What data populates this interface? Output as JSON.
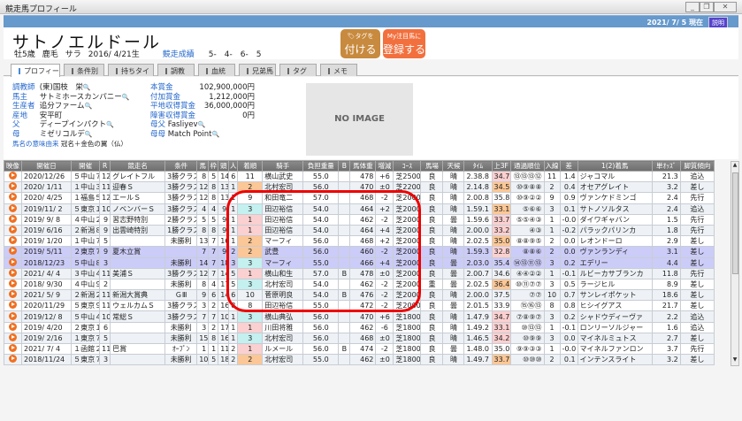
{
  "window": {
    "title": "競走馬プロフィール",
    "minimize": "_",
    "restore": "❐",
    "close": "✕"
  },
  "topbar": {
    "date": "2021/ 7/ 5 現在",
    "help_label": "説明"
  },
  "horse": {
    "name": "サトノエルドール",
    "sex_age": "牡5歳",
    "coat": "鹿毛",
    "breed": "サラ",
    "birth": "2016/ 4/21生",
    "record_label": "競走成績",
    "record": "5-　4-　6-　5"
  },
  "buttons": {
    "tag_top": "タグを",
    "tag_main": "付ける",
    "fav_top": "My注目馬に",
    "fav_main": "登録する"
  },
  "tabs": [
    "プロフィール",
    "条件別",
    "持ちタイム",
    "調教",
    "血統",
    "兄弟馬",
    "タグ",
    "メモ"
  ],
  "profile": {
    "left": [
      {
        "label": "調教師",
        "value": "(東)国枝　栄"
      },
      {
        "label": "馬主",
        "value": "サトミホースカンパニー"
      },
      {
        "label": "生産者",
        "value": "追分ファーム"
      },
      {
        "label": "産地",
        "value": "安平町"
      },
      {
        "label": "父",
        "value": "ディープインパクト"
      },
      {
        "label": "母",
        "value": "ミゼリコルデ"
      }
    ],
    "name_origin_label": "馬名の意味由来",
    "name_origin": "冠名＋金色の翼（仏）",
    "right": [
      {
        "label": "本賞金",
        "value": "102,900,000円"
      },
      {
        "label": "付加賞金",
        "value": "1,212,000円"
      },
      {
        "label": "平地収得賞金",
        "value": "36,000,000円"
      },
      {
        "label": "障害収得賞金",
        "value": "0円"
      }
    ],
    "dam_sire_label": "母父",
    "dam_sire": "Fasliyev",
    "dam_dam_label": "母母",
    "dam_dam": "Match Point",
    "no_image": "NO IMAGE"
  },
  "table": {
    "columns": [
      "映像",
      "開催日",
      "開催",
      "R",
      "競走名",
      "条件",
      "馬",
      "枠",
      "頭",
      "人",
      "着順",
      "騎手",
      "負担重量",
      "B",
      "馬体重",
      "増減",
      "ｺｰｽ",
      "馬場",
      "天候",
      "ﾀｲﾑ",
      "上3F",
      "通過順位",
      "入線",
      "差",
      "1(2)着馬",
      "単ｵｯｽﾞ",
      "脚質傾向"
    ],
    "rows": [
      [
        "",
        "2020/12/26",
        "５中山７",
        "12",
        "グレイトフル",
        "3勝クラス",
        "8",
        "5",
        "14",
        "6",
        "11",
        "横山武史",
        "55.0",
        "",
        "478",
        "+6",
        "芝2500",
        "良",
        "晴",
        "2.38.8",
        "34.7",
        "⑬⑬⑬⑫",
        "11",
        "1.4",
        "ジャコマル",
        "21.3",
        "追込"
      ],
      [
        "",
        "2020/ 1/11",
        "１中山３",
        "11",
        "迎春Ｓ",
        "3勝クラス",
        "12",
        "8",
        "13",
        "1",
        "2",
        "北村宏司",
        "56.0",
        "",
        "470",
        "±0",
        "芝2200",
        "良",
        "晴",
        "2.14.8",
        "34.5",
        "⑩⑨⑧⑧",
        "2",
        "0.4",
        "オセアグレイト",
        "3.2",
        "差し"
      ],
      [
        "",
        "2020/ 4/25",
        "１福島５",
        "12",
        "エールＳ",
        "3勝クラス",
        "12",
        "8",
        "13",
        "1",
        "9",
        "和田竜二",
        "57.0",
        "",
        "468",
        "-2",
        "芝2000",
        "良",
        "晴",
        "2.00.8",
        "35.8",
        "⑩⑨②②",
        "9",
        "0.9",
        "ヴァンケドミンゴ",
        "2.4",
        "先行"
      ],
      [
        "",
        "2019/11/ 2",
        "５東京１",
        "10",
        "ノベンバーＳ",
        "3勝クラス",
        "4",
        "4",
        "9",
        "1",
        "3",
        "田辺裕信",
        "54.0",
        "",
        "464",
        "+2",
        "芝2000",
        "良",
        "晴",
        "1.59.1",
        "33.1",
        "⑤⑥⑥",
        "3",
        "0.1",
        "サトノソルタス",
        "2.4",
        "追込"
      ],
      [
        "",
        "2019/ 9/ 8",
        "４中山２",
        "9",
        "習志野特別",
        "2勝クラス",
        "5",
        "5",
        "9",
        "1",
        "1",
        "田辺裕信",
        "54.0",
        "",
        "462",
        "-2",
        "芝2000",
        "良",
        "曇",
        "1.59.6",
        "33.7",
        "⑤⑤④③",
        "1",
        "-0.0",
        "ダイワギャバン",
        "1.5",
        "先行"
      ],
      [
        "",
        "2019/ 6/16",
        "２新潟８",
        "9",
        "出雲崎特別",
        "1勝クラス",
        "8",
        "8",
        "9",
        "1",
        "1",
        "田辺裕信",
        "54.0",
        "",
        "464",
        "+4",
        "芝2000",
        "良",
        "晴",
        "2.00.0",
        "33.2",
        "④③",
        "1",
        "-0.2",
        "パラックパリンカ",
        "1.8",
        "先行"
      ],
      [
        "",
        "2019/ 1/20",
        "１中山７",
        "5",
        "",
        "未勝利",
        "13",
        "7",
        "16",
        "1",
        "2",
        "マーフィ",
        "56.0",
        "",
        "468",
        "+2",
        "芝2000",
        "良",
        "晴",
        "2.02.5",
        "35.0",
        "⑧⑧⑨⑤",
        "2",
        "0.0",
        "レオンドーロ",
        "2.9",
        "差し"
      ],
      [
        "",
        "2019/ 5/11",
        "２東京７",
        "9",
        "夏木立賞",
        "",
        "7",
        "7",
        "9",
        "2",
        "2",
        "武豊",
        "56.0",
        "",
        "460",
        "-2",
        "芝2000",
        "良",
        "晴",
        "1.59.3",
        "32.8",
        "⑧⑧⑥",
        "2",
        "0.0",
        "ヴァンランディ",
        "3.1",
        "差し"
      ],
      [
        "",
        "2018/12/23",
        "５中山８",
        "3",
        "",
        "未勝利",
        "14",
        "7",
        "18",
        "3",
        "3",
        "マーフィ",
        "55.0",
        "",
        "466",
        "+4",
        "芝2000",
        "良",
        "曇",
        "2.03.0",
        "35.4",
        "⑭⑬⑪⑬",
        "3",
        "0.2",
        "エデリー",
        "4.4",
        "差し"
      ],
      [
        "",
        "2021/ 4/ 4",
        "３中山４",
        "11",
        "美浦Ｓ",
        "3勝クラス",
        "12",
        "7",
        "14",
        "5",
        "1",
        "横山和生",
        "57.0",
        "B",
        "478",
        "±0",
        "芝2000",
        "良",
        "曇",
        "2.00.7",
        "34.6",
        "④④②②",
        "1",
        "-0.1",
        "ルビーカサブランカ",
        "11.8",
        "先行"
      ],
      [
        "",
        "2018/ 9/30",
        "４中山９",
        "2",
        "",
        "未勝利",
        "8",
        "4",
        "17",
        "5",
        "3",
        "北村宏司",
        "54.0",
        "",
        "462",
        "-2",
        "芝2000",
        "重",
        "曇",
        "2.02.5",
        "36.4",
        "⑩⑪⑦⑦",
        "3",
        "0.5",
        "ラージヒル",
        "8.9",
        "差し"
      ],
      [
        "",
        "2021/ 5/ 9",
        "２新潟２",
        "11",
        "新潟大賞典",
        "ＧⅢ",
        "9",
        "6",
        "14",
        "6",
        "10",
        "菅原明良",
        "54.0",
        "B",
        "476",
        "-2",
        "芝2000",
        "良",
        "晴",
        "2.00.0",
        "37.5",
        "⑦⑦",
        "10",
        "0.7",
        "サンレイポケット",
        "18.6",
        "差し"
      ],
      [
        "",
        "2020/11/29",
        "５東京９",
        "11",
        "ウェルカムＳ",
        "3勝クラス",
        "3",
        "2",
        "16",
        "8",
        "8",
        "田辺裕信",
        "55.0",
        "",
        "472",
        "-2",
        "芝2000",
        "良",
        "曇",
        "2.01.5",
        "33.9",
        "⑮⑯⑬",
        "8",
        "0.8",
        "ヒシイグアス",
        "21.7",
        "差し"
      ],
      [
        "",
        "2019/12/ 8",
        "５中山４",
        "10",
        "常総Ｓ",
        "3勝クラス",
        "7",
        "7",
        "10",
        "1",
        "3",
        "横山典弘",
        "56.0",
        "",
        "470",
        "+6",
        "芝1800",
        "良",
        "晴",
        "1.47.9",
        "34.7",
        "⑦⑧⑨⑦",
        "3",
        "0.2",
        "シャドウディーヴァ",
        "2.2",
        "追込"
      ],
      [
        "",
        "2019/ 4/20",
        "２東京１",
        "6",
        "",
        "未勝利",
        "3",
        "2",
        "17",
        "1",
        "1",
        "川田将雅",
        "56.0",
        "",
        "462",
        "-6",
        "芝1800",
        "良",
        "晴",
        "1.49.2",
        "33.1",
        "⑩⑬⑬",
        "1",
        "-0.1",
        "ロンリーソルジャー",
        "1.6",
        "追込"
      ],
      [
        "",
        "2019/ 2/16",
        "１東京７",
        "5",
        "",
        "未勝利",
        "15",
        "8",
        "16",
        "1",
        "3",
        "北村宏司",
        "56.0",
        "",
        "468",
        "±0",
        "芝1800",
        "良",
        "晴",
        "1.46.5",
        "34.2",
        "⑩⑨⑨",
        "3",
        "0.0",
        "マイネルミュトス",
        "2.7",
        "差し"
      ],
      [
        "",
        "2021/ 7/ 4",
        "１函館２",
        "11",
        "巴賞",
        "ｵｰﾌﾟﾝ",
        "1",
        "1",
        "11",
        "2",
        "1",
        "ルメール",
        "56.0",
        "B",
        "474",
        "-2",
        "芝1800",
        "良",
        "曇",
        "1.48.0",
        "35.0",
        "⑨⑨③③",
        "1",
        "-0.0",
        "マイネルファンロン",
        "3.7",
        "先行"
      ],
      [
        "",
        "2018/11/24",
        "５東京７",
        "3",
        "",
        "未勝利",
        "10",
        "5",
        "18",
        "2",
        "2",
        "北村宏司",
        "55.0",
        "",
        "462",
        "±0",
        "芝1800",
        "良",
        "晴",
        "1.49.7",
        "33.7",
        "⑩⑩⑩",
        "2",
        "0.1",
        "インテンスライト",
        "3.2",
        "差し"
      ]
    ],
    "highlighted_rows": [
      7,
      8
    ],
    "last3f_rank": [
      "2nd",
      "1st",
      "",
      "1st",
      "2nd",
      "2nd",
      "1st",
      "2nd",
      "",
      "",
      "1st",
      "",
      "",
      "2nd",
      "2nd",
      "2nd",
      "",
      "1st"
    ],
    "colors": {
      "finish_1": "#fbd0d0",
      "finish_2": "#fbc796",
      "finish_3": "#c4f0f0",
      "highlight": "#ccccf8",
      "annotation": "#e00000"
    }
  }
}
